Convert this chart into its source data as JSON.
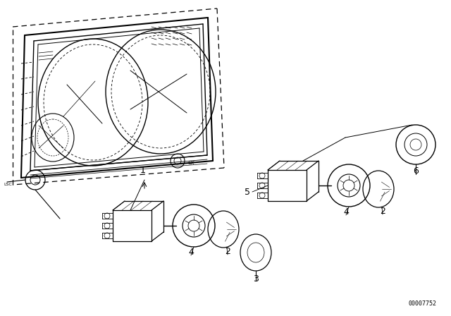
{
  "bg_color": "#ffffff",
  "line_color": "#000000",
  "fig_width": 6.4,
  "fig_height": 4.48,
  "dpi": 100,
  "watermark": "00007752"
}
